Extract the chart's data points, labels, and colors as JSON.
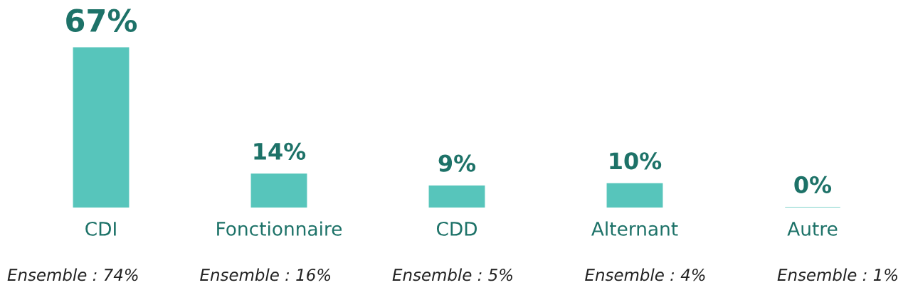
{
  "chart_data": {
    "type": "bar",
    "categories": [
      "CDI",
      "Fonctionnaire",
      "CDD",
      "Alternant",
      "Autre"
    ],
    "values": [
      67,
      14,
      9,
      10,
      0
    ],
    "value_labels": [
      "67%",
      "14%",
      "9%",
      "10%",
      "0%"
    ],
    "color": "#57c5bb",
    "annotations": [
      "Ensemble : 74%",
      "Ensemble : 16%",
      "Ensemble : 5%",
      "Ensemble : 4%",
      "Ensemble : 1%"
    ]
  }
}
